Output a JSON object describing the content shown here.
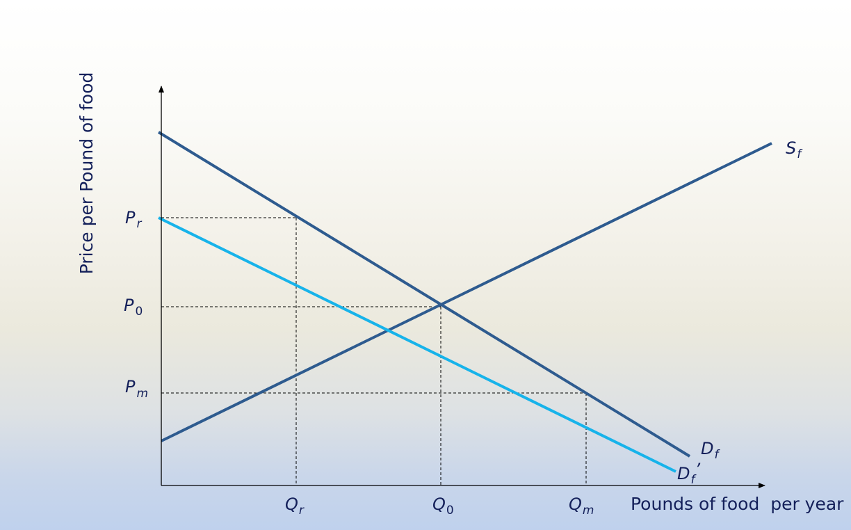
{
  "diagram": {
    "y_axis_label": "Price per Pound of food",
    "x_axis_label": "Pounds of food  per year",
    "price_labels": {
      "pr": {
        "base": "P",
        "sub": "r"
      },
      "p0": {
        "base": "P",
        "sub": "0"
      },
      "pm": {
        "base": "P",
        "sub": "m"
      }
    },
    "quantity_labels": {
      "qr": {
        "base": "Q",
        "sub": "r"
      },
      "q0": {
        "base": "Q",
        "sub": "0"
      },
      "qm": {
        "base": "Q",
        "sub": "m"
      }
    },
    "curve_labels": {
      "supply": {
        "base": "S",
        "sub": "f"
      },
      "demand": {
        "base": "D",
        "sub": "f"
      },
      "demand_shifted": {
        "base": "D",
        "sub": "f",
        "suffix": "’"
      }
    },
    "colors": {
      "text": "#14205a",
      "axis": "#000000",
      "supply_line": "#2e5b8f",
      "demand_line": "#2e5b8f",
      "shifted_demand_line": "#17b3ea",
      "guide_line": "#000000"
    }
  }
}
